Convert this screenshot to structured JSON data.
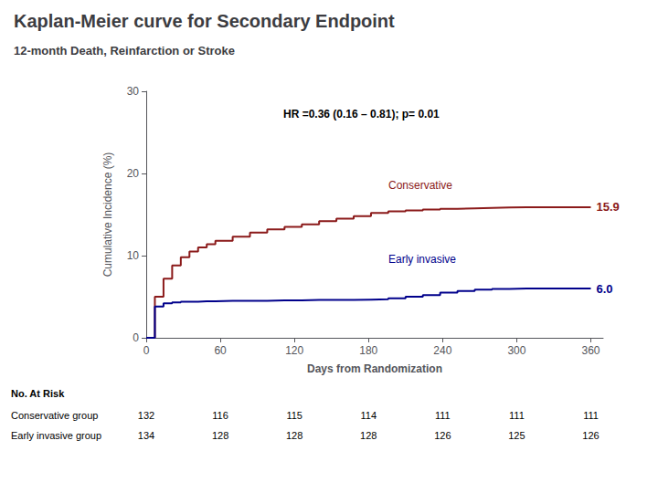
{
  "chart_data": {
    "type": "step",
    "title": "Kaplan-Meier curve for Secondary Endpoint",
    "subtitle": "12-month Death, Reinfarction or Stroke",
    "annotation": "HR =0.36 (0.16 – 0.81); p= 0.01",
    "xlabel": "Days from Randomization",
    "ylabel": "Cumulative Incidence (%)",
    "xlim": [
      0,
      370
    ],
    "ylim": [
      0,
      30
    ],
    "xticks": [
      0,
      60,
      120,
      180,
      240,
      300,
      360
    ],
    "yticks": [
      0,
      10,
      20,
      30
    ],
    "grid": false,
    "series": [
      {
        "name": "Conservative",
        "color": "#8b1a1a",
        "end_label": "15.9",
        "x": [
          0,
          7,
          14,
          21,
          28,
          35,
          42,
          49,
          56,
          70,
          84,
          98,
          112,
          126,
          140,
          154,
          168,
          182,
          196,
          210,
          224,
          238,
          252,
          266,
          280,
          294,
          308,
          322,
          336,
          350,
          360
        ],
        "values": [
          0,
          5.0,
          7.2,
          8.8,
          9.8,
          10.5,
          11.0,
          11.4,
          11.8,
          12.3,
          12.8,
          13.2,
          13.5,
          13.8,
          14.2,
          14.5,
          14.8,
          15.2,
          15.4,
          15.5,
          15.6,
          15.7,
          15.75,
          15.8,
          15.85,
          15.9,
          15.9,
          15.9,
          15.9,
          15.9,
          15.9
        ]
      },
      {
        "name": "Early invasive",
        "color": "#00008b",
        "end_label": "6.0",
        "x": [
          0,
          7,
          14,
          21,
          28,
          35,
          42,
          49,
          56,
          70,
          84,
          98,
          112,
          126,
          140,
          154,
          168,
          182,
          196,
          210,
          224,
          238,
          252,
          266,
          280,
          294,
          308,
          322,
          336,
          350,
          360
        ],
        "values": [
          0,
          3.8,
          4.2,
          4.3,
          4.4,
          4.4,
          4.45,
          4.45,
          4.5,
          4.5,
          4.5,
          4.55,
          4.55,
          4.6,
          4.6,
          4.6,
          4.65,
          4.7,
          4.8,
          5.0,
          5.2,
          5.5,
          5.7,
          5.85,
          5.95,
          6.0,
          6.0,
          6.0,
          6.0,
          6.0,
          6.0
        ]
      }
    ],
    "at_risk": {
      "label": "No. At Risk",
      "x": [
        0,
        60,
        120,
        180,
        240,
        300,
        360
      ],
      "groups": [
        {
          "name": "Conservative group",
          "values": [
            132,
            116,
            115,
            114,
            111,
            111,
            111
          ]
        },
        {
          "name": "Early invasive group",
          "values": [
            134,
            128,
            128,
            128,
            126,
            125,
            126
          ]
        }
      ]
    }
  }
}
